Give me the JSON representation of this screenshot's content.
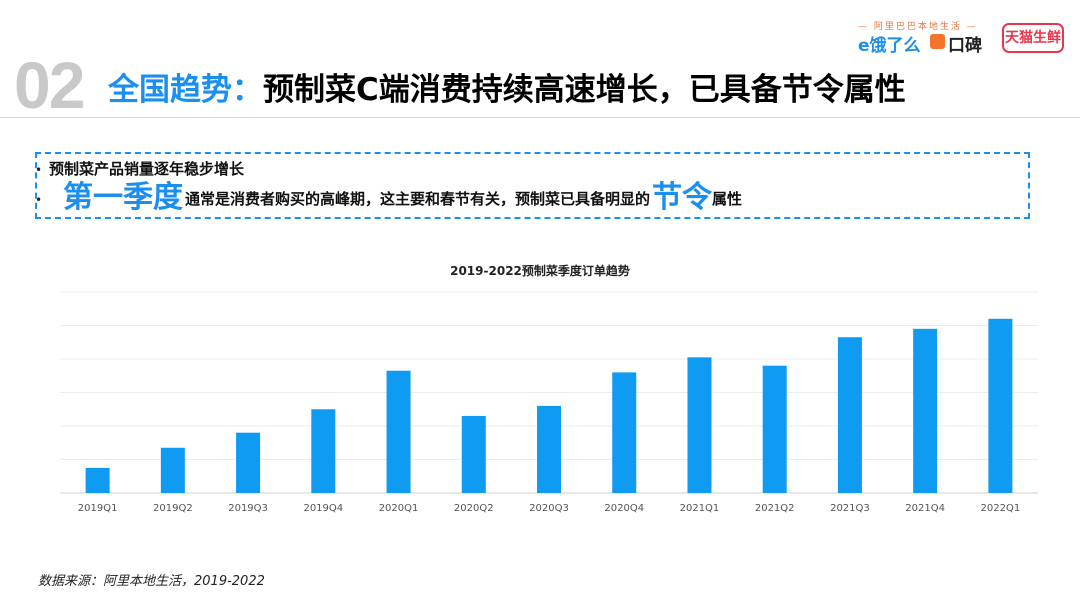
{
  "header": {
    "section_number": "02",
    "title_accent": "全国趋势：",
    "title_main": "预制菜C端消费持续高速增长，已具备节令属性"
  },
  "brands": {
    "tagline": "— 阿里巴巴本地生活 —",
    "eleme": "e饿了么",
    "koubei": "口碑",
    "tmall": "天猫生鲜",
    "accent_color": "#1a8fef",
    "tmall_color": "#e8364b"
  },
  "callout": {
    "bullet1": "预制菜产品销量逐年稳步增长",
    "bullet2_highlight1": "第一季度",
    "bullet2_middle": "通常是消费者购买的高峰期，这主要和春节有关，预制菜已具备明显的",
    "bullet2_highlight2": "节令",
    "bullet2_tail": "属性",
    "bullet_symbol": "•"
  },
  "chart_data": {
    "type": "bar",
    "title": "2019-2022预制菜季度订单趋势",
    "categories": [
      "2019Q1",
      "2019Q2",
      "2019Q3",
      "2019Q4",
      "2020Q1",
      "2020Q2",
      "2020Q3",
      "2020Q4",
      "2021Q1",
      "2021Q2",
      "2021Q3",
      "2021Q4",
      "2022Q1"
    ],
    "values": [
      15,
      27,
      36,
      50,
      73,
      46,
      52,
      72,
      81,
      76,
      93,
      98,
      104
    ],
    "ylim": [
      0,
      120
    ],
    "grid": true,
    "color": "#0f9bf2",
    "xlabel": "",
    "ylabel": ""
  },
  "footer": {
    "source": "数据来源：阿里本地生活，2019-2022"
  }
}
